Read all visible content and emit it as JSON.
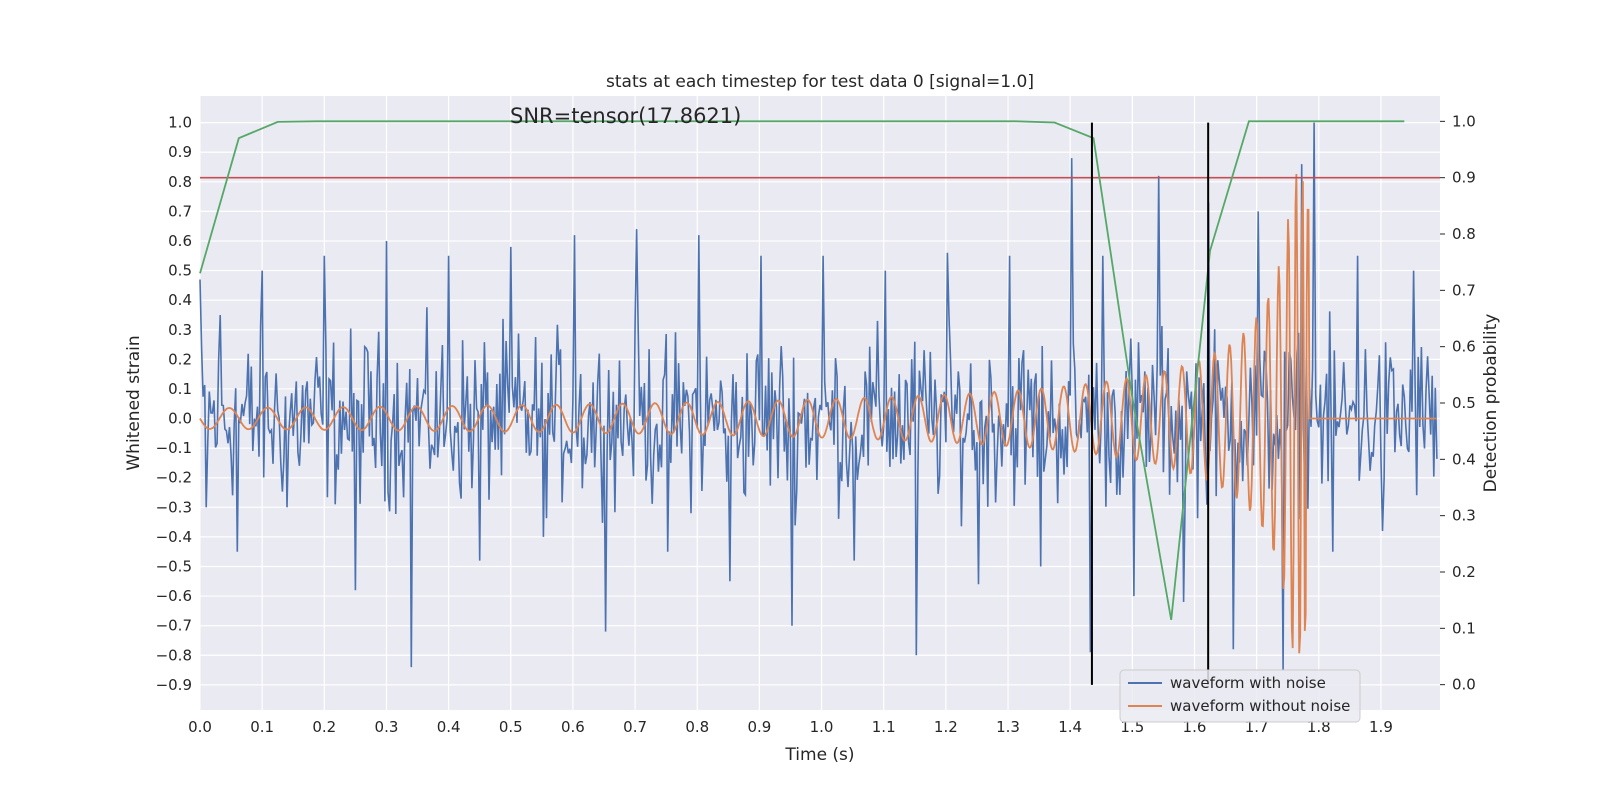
{
  "chart_data": {
    "type": "line",
    "title": "stats at each timestep for test data 0 [signal=1.0]",
    "xlabel": "Time (s)",
    "ylabel_left": "Whitened strain",
    "ylabel_right": "Detection probability",
    "annotation": "SNR=tensor(17.8621)",
    "xlim": [
      0.0,
      1.995
    ],
    "ylim_left": [
      -0.985,
      1.09
    ],
    "ylim_right": [
      -0.045,
      1.045
    ],
    "x_ticks": [
      "0.0",
      "0.1",
      "0.2",
      "0.3",
      "0.4",
      "0.5",
      "0.6",
      "0.7",
      "0.8",
      "0.9",
      "1.0",
      "1.1",
      "1.2",
      "1.3",
      "1.4",
      "1.5",
      "1.6",
      "1.7",
      "1.8",
      "1.9"
    ],
    "y_ticks_left": [
      "1.0",
      "0.9",
      "0.8",
      "0.7",
      "0.6",
      "0.5",
      "0.4",
      "0.3",
      "0.2",
      "0.1",
      "0.0",
      "−0.1",
      "−0.2",
      "−0.3",
      "−0.4",
      "−0.5",
      "−0.6",
      "−0.7",
      "−0.8",
      "−0.9"
    ],
    "y_ticks_right": [
      "1.0",
      "0.9",
      "0.8",
      "0.7",
      "0.6",
      "0.5",
      "0.4",
      "0.3",
      "0.2",
      "0.1",
      "0.0"
    ],
    "grid": true,
    "legend_position": "bottom-right",
    "series": [
      {
        "name": "waveform with noise",
        "color": "#4c72b0",
        "axis": "left",
        "description_points": {
          "x": [
            0.0,
            0.01,
            0.03,
            0.06,
            0.1,
            0.14,
            0.2,
            0.25,
            0.3,
            0.34,
            0.4,
            0.45,
            0.5,
            0.55,
            0.6,
            0.65,
            0.7,
            0.75,
            0.8,
            0.85,
            0.9,
            0.95,
            1.0,
            1.05,
            1.1,
            1.15,
            1.2,
            1.25,
            1.3,
            1.35,
            1.4,
            1.43,
            1.45,
            1.5,
            1.54,
            1.58,
            1.62,
            1.66,
            1.7,
            1.74,
            1.77,
            1.79,
            1.82,
            1.86,
            1.9,
            1.95,
            1.99
          ],
          "y": [
            0.47,
            -0.3,
            0.35,
            -0.45,
            0.5,
            -0.3,
            0.55,
            -0.58,
            0.6,
            -0.84,
            0.55,
            -0.48,
            0.58,
            -0.4,
            0.62,
            -0.72,
            0.64,
            -0.45,
            0.62,
            -0.55,
            0.55,
            -0.7,
            0.55,
            -0.48,
            0.5,
            -0.8,
            0.56,
            -0.56,
            0.55,
            -0.5,
            0.88,
            -0.79,
            0.55,
            -0.6,
            0.82,
            -0.62,
            0.73,
            -0.78,
            0.7,
            -0.85,
            0.86,
            1.0,
            -0.45,
            0.55,
            -0.38,
            0.5,
            -0.25
          ]
        }
      },
      {
        "name": "waveform without noise",
        "color": "#dd8452",
        "axis": "left",
        "chirp": {
          "start_amplitude": 0.035,
          "start_cycles_per_second": 16,
          "merger_time": 1.785,
          "peak_amplitude": 0.85,
          "end_value": 0.0
        }
      },
      {
        "name": "",
        "color": "#55a868",
        "axis": "right",
        "x": [
          0.0,
          0.0625,
          0.125,
          0.1875,
          0.25,
          0.3125,
          0.375,
          0.4375,
          0.5,
          0.5625,
          0.625,
          0.6875,
          0.75,
          0.8125,
          0.875,
          0.9375,
          1.0,
          1.0625,
          1.125,
          1.1875,
          1.25,
          1.3125,
          1.375,
          1.4375,
          1.5,
          1.5625,
          1.625,
          1.6875,
          1.75,
          1.8125,
          1.875,
          1.9375
        ],
        "y": [
          0.73,
          0.97,
          0.999,
          1.0,
          1.0,
          1.0,
          1.0,
          1.0,
          1.0,
          1.0,
          1.0,
          1.0,
          1.0,
          1.0,
          1.0,
          1.0,
          1.0,
          1.0,
          1.0,
          1.0,
          1.0,
          1.0,
          0.998,
          0.97,
          0.51,
          0.115,
          0.77,
          1.0,
          1.0,
          1.0,
          1.0,
          1.0
        ]
      }
    ],
    "threshold_line": {
      "axis": "right",
      "value": 0.9,
      "color": "#c44e52"
    },
    "vertical_markers": {
      "x": [
        1.435,
        1.622
      ],
      "color": "#000000",
      "y_range_left": [
        -0.9,
        1.0
      ]
    }
  }
}
